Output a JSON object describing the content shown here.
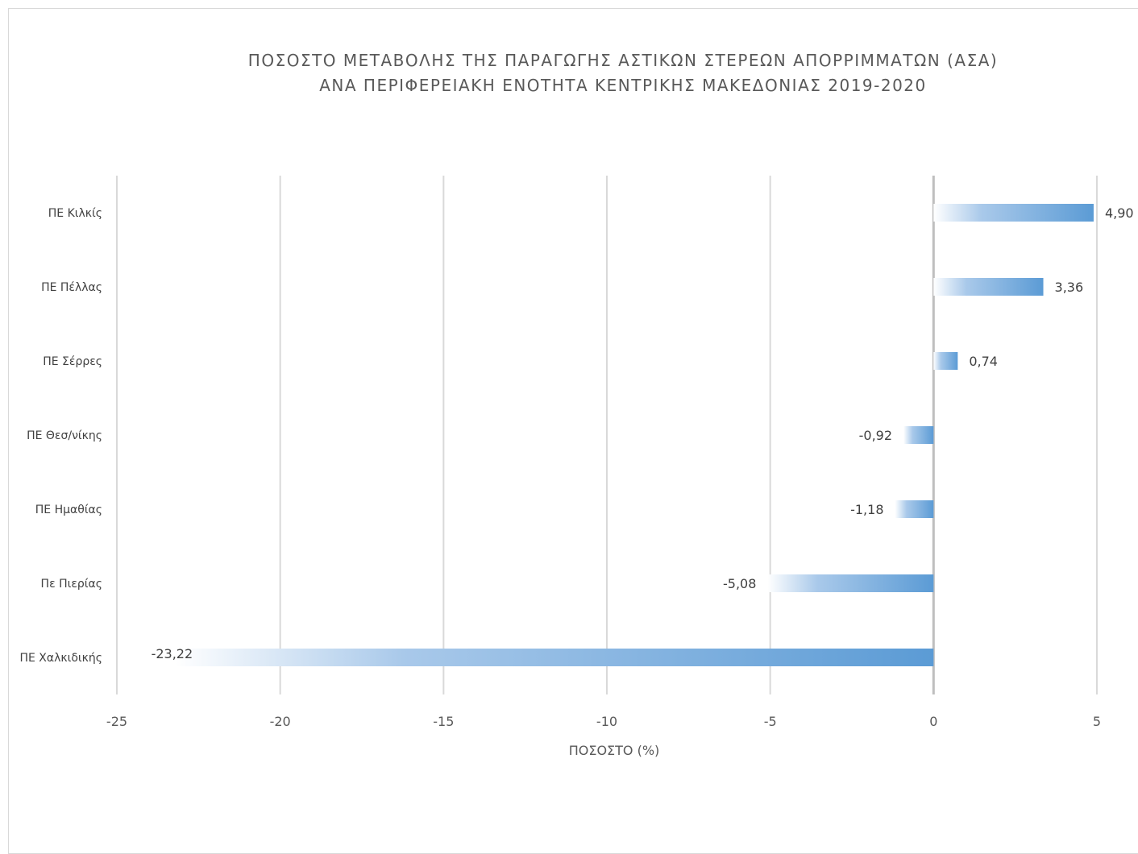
{
  "chart_data": {
    "type": "bar",
    "orientation": "horizontal",
    "title_lines": [
      "ΠΟΣΟΣΤΟ ΜΕΤΑΒΟΛΗΣ ΤΗΣ ΠΑΡΑΓΩΓΗΣ ΑΣΤΙΚΩΝ ΣΤΕΡΕΩΝ ΑΠΟΡΡΙΜΜΑΤΩΝ (ΑΣΑ)",
      "ΑΝΑ ΠΕΡΙΦΕΡΕΙΑΚΗ ΕΝΟΤΗΤΑ ΚΕΝΤΡΙΚΗΣ ΜΑΚΕΔΟΝΙΑΣ 2019-2020"
    ],
    "xlabel": "ΠΟΣΟΣΤΟ (%)",
    "ylabel": "",
    "xlim": [
      -25,
      5
    ],
    "xticks": [
      -25,
      -20,
      -15,
      -10,
      -5,
      0,
      5
    ],
    "xtick_labels": [
      "-25",
      "-20",
      "-15",
      "-10",
      "-5",
      "0",
      "5"
    ],
    "grid": "vertical",
    "categories": [
      "ΠΕ Κιλκίς",
      "ΠΕ Πέλλας",
      "ΠΕ Σέρρες",
      "ΠΕ Θεσ/νίκης",
      "ΠΕ Ημαθίας",
      "Πε Πιερίας",
      "ΠΕ Χαλκιδικής"
    ],
    "values": [
      4.9,
      3.36,
      0.74,
      -0.92,
      -1.18,
      -5.08,
      -23.22
    ],
    "value_labels": [
      "4,90",
      "3,36",
      "0,74",
      "-0,92",
      "-1,18",
      "-5,08",
      "-23,22"
    ],
    "bar_color": "#5b9bd5"
  }
}
